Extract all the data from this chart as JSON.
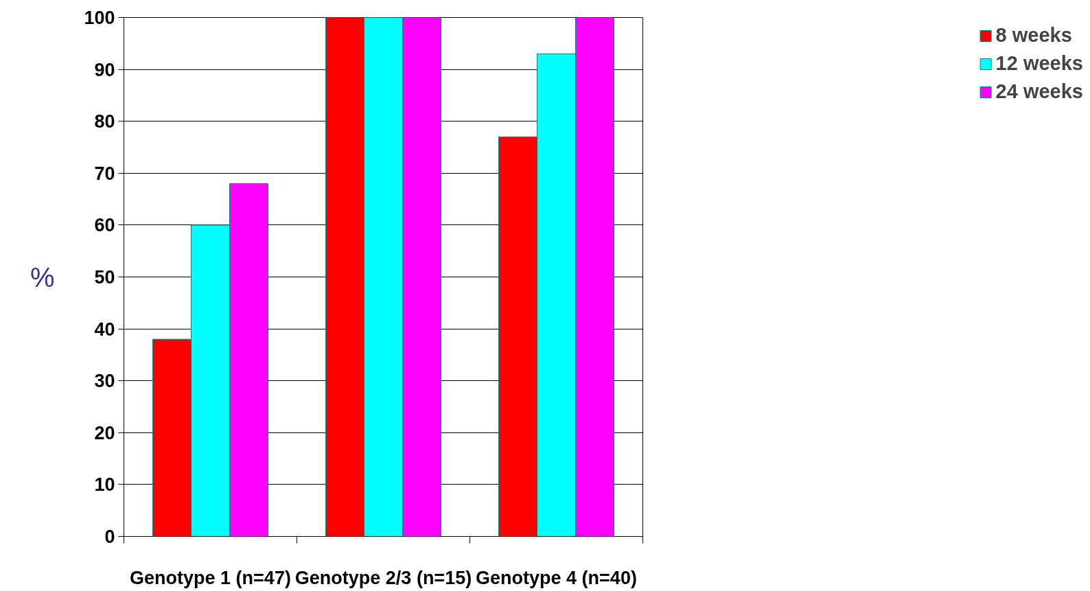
{
  "chart_data": {
    "type": "bar",
    "ylabel": "%",
    "categories": [
      "Genotype 1 (n=47)",
      "Genotype 2/3 (n=15)",
      "Genotype 4 (n=40)"
    ],
    "series": [
      {
        "name": "8 weeks",
        "color": "#ff0000",
        "values": [
          38,
          100,
          77
        ]
      },
      {
        "name": "12 weeks",
        "color": "#00ffff",
        "values": [
          60,
          100,
          93
        ]
      },
      {
        "name": "24 weeks",
        "color": "#ff00ff",
        "values": [
          68,
          100,
          100
        ]
      }
    ],
    "ylim": [
      0,
      100
    ],
    "yticks": [
      0,
      10,
      20,
      30,
      40,
      50,
      60,
      70,
      80,
      90,
      100
    ],
    "grid": "y",
    "legend": "right"
  }
}
